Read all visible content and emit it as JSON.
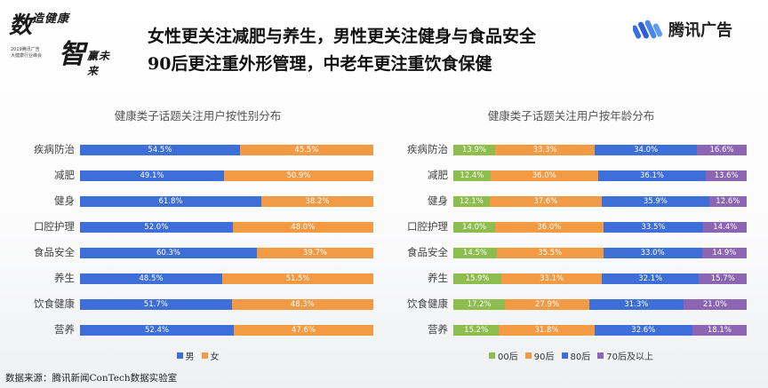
{
  "brand_left": {
    "char1": "数",
    "char2": "造健康",
    "char3": "智",
    "char4": "赢未来",
    "line1": "2019腾讯广告",
    "line2": "大健康行业峰会"
  },
  "headline": {
    "line1": "女性更关注减肥与养生，男性更关注健身与食品安全",
    "line2": "90后更注重外形管理，中老年更注重饮食保健"
  },
  "brand_right": {
    "name": "腾讯广告"
  },
  "colors": {
    "male": "#3e6fd9",
    "female": "#f39a45",
    "age_00": "#8cbd4e",
    "age_90": "#f39a45",
    "age_80": "#3e6fd9",
    "age_70": "#8c65b3"
  },
  "chart_data": [
    {
      "type": "bar",
      "orientation": "horizontal",
      "stacked": "percent",
      "title": "健康类子话题关注用户按性别分布",
      "categories": [
        "疾病防治",
        "减肥",
        "健身",
        "口腔护理",
        "食品安全",
        "养生",
        "饮食健康",
        "营养"
      ],
      "series": [
        {
          "name": "男",
          "color": "#3e6fd9",
          "values": [
            54.5,
            49.1,
            61.8,
            52.0,
            60.3,
            48.5,
            51.7,
            52.4
          ]
        },
        {
          "name": "女",
          "color": "#f39a45",
          "values": [
            45.5,
            50.9,
            38.2,
            48.0,
            39.7,
            51.5,
            48.3,
            47.6
          ]
        }
      ],
      "legend": "bottom"
    },
    {
      "type": "bar",
      "orientation": "horizontal",
      "stacked": "percent",
      "title": "健康类子话题关注用户按年龄分布",
      "categories": [
        "疾病防治",
        "减肥",
        "健身",
        "口腔护理",
        "食品安全",
        "养生",
        "饮食健康",
        "营养"
      ],
      "series": [
        {
          "name": "00后",
          "color": "#8cbd4e",
          "values": [
            13.9,
            12.4,
            12.1,
            14.0,
            14.5,
            15.9,
            17.2,
            15.2
          ]
        },
        {
          "name": "90后",
          "color": "#f39a45",
          "values": [
            33.3,
            36.0,
            37.6,
            36.0,
            35.5,
            33.1,
            27.9,
            31.8
          ]
        },
        {
          "name": "80后",
          "color": "#3e6fd9",
          "values": [
            34.0,
            36.1,
            35.9,
            33.5,
            33.0,
            32.1,
            31.3,
            32.6
          ]
        },
        {
          "name": "70后及以上",
          "color": "#8c65b3",
          "values": [
            16.6,
            13.6,
            12.6,
            14.4,
            14.9,
            15.7,
            21.0,
            18.1
          ]
        }
      ],
      "legend": "bottom"
    }
  ],
  "source": "数据来源：腾讯新闻ConTech数据实验室"
}
